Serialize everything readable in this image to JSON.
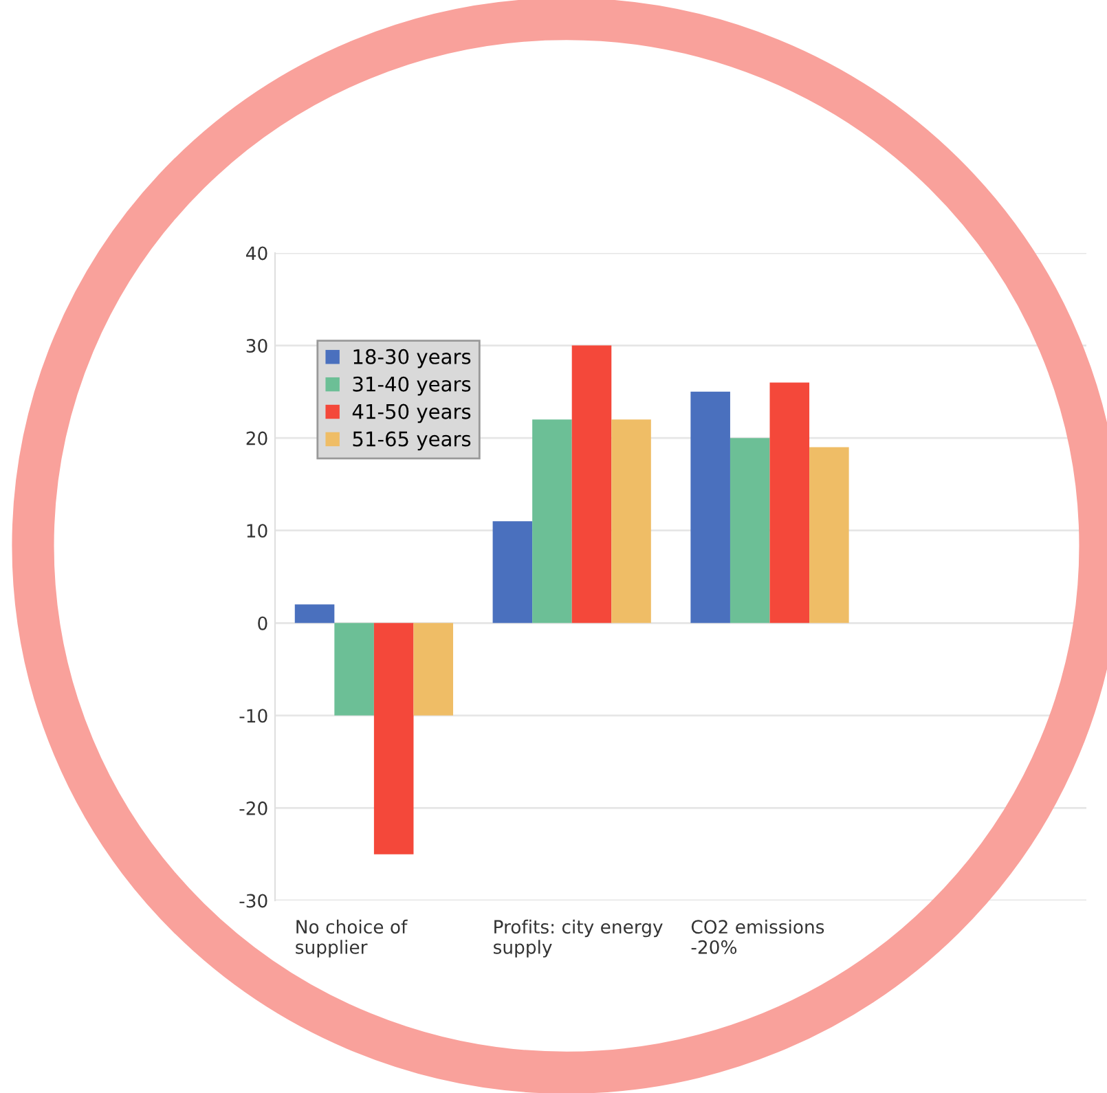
{
  "chart_data": {
    "type": "bar",
    "categories": [
      "No choice of\nsupplier",
      "Profits: city energy\nsupply",
      "CO2 emissions\n-20%"
    ],
    "series": [
      {
        "name": "18-30 years",
        "color": "#4a70be",
        "values": [
          2,
          11,
          25
        ]
      },
      {
        "name": "31-40 years",
        "color": "#6cbf96",
        "values": [
          -10,
          22,
          20
        ]
      },
      {
        "name": "41-50 years",
        "color": "#f4483a",
        "values": [
          -25,
          30,
          26
        ]
      },
      {
        "name": "51-65 years",
        "color": "#efbd66",
        "values": [
          -10,
          22,
          19
        ]
      }
    ],
    "ylim": [
      -30,
      40
    ],
    "yticks": [
      -30,
      -20,
      -10,
      0,
      10,
      20,
      30,
      40
    ],
    "grid": "y",
    "legend": "top left"
  }
}
